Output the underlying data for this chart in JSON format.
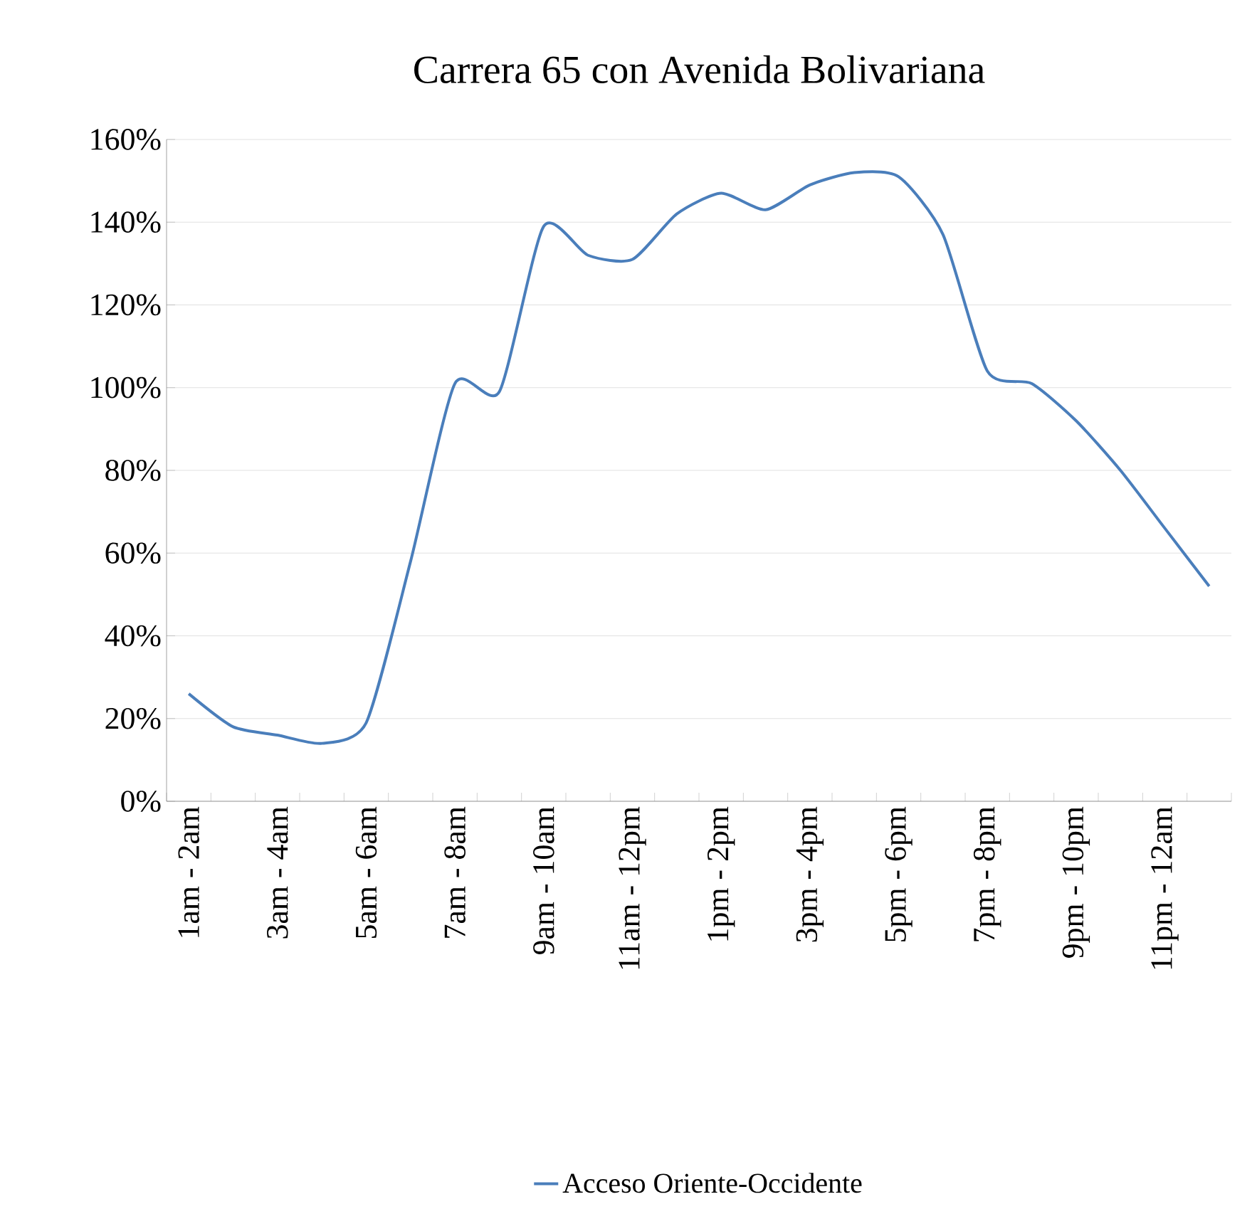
{
  "chart_data": {
    "type": "line",
    "title": "Carrera 65 con Avenida Bolivariana",
    "categories": [
      "1am - 2am",
      null,
      "3am - 4am",
      null,
      "5am - 6am",
      null,
      "7am - 8am",
      null,
      "9am - 10am",
      null,
      "11am - 12pm",
      null,
      "1pm - 2pm",
      null,
      "3pm - 4pm",
      null,
      "5pm - 6pm",
      null,
      "7pm - 8pm",
      null,
      "9pm - 10pm",
      null,
      "11pm - 12am",
      null
    ],
    "series": [
      {
        "name": "Acceso Oriente-Occidente",
        "color": "#4a7ebb",
        "values": [
          26,
          18,
          16,
          14,
          19,
          58,
          101,
          99,
          139,
          132,
          131,
          142,
          147,
          143,
          149,
          152,
          151,
          137,
          104,
          101,
          92,
          80,
          66,
          52
        ]
      }
    ],
    "ylim": [
      0,
      160
    ],
    "yticks": [
      {
        "value": 0,
        "label": "0%"
      },
      {
        "value": 20,
        "label": "20%"
      },
      {
        "value": 40,
        "label": "40%"
      },
      {
        "value": 60,
        "label": "60%"
      },
      {
        "value": 80,
        "label": "80%"
      },
      {
        "value": 100,
        "label": "100%"
      },
      {
        "value": 120,
        "label": "120%"
      },
      {
        "value": 140,
        "label": "140%"
      },
      {
        "value": 160,
        "label": "160%"
      }
    ],
    "grid": "y",
    "legend": "bottom",
    "marker": "none",
    "line_style": "solid"
  }
}
